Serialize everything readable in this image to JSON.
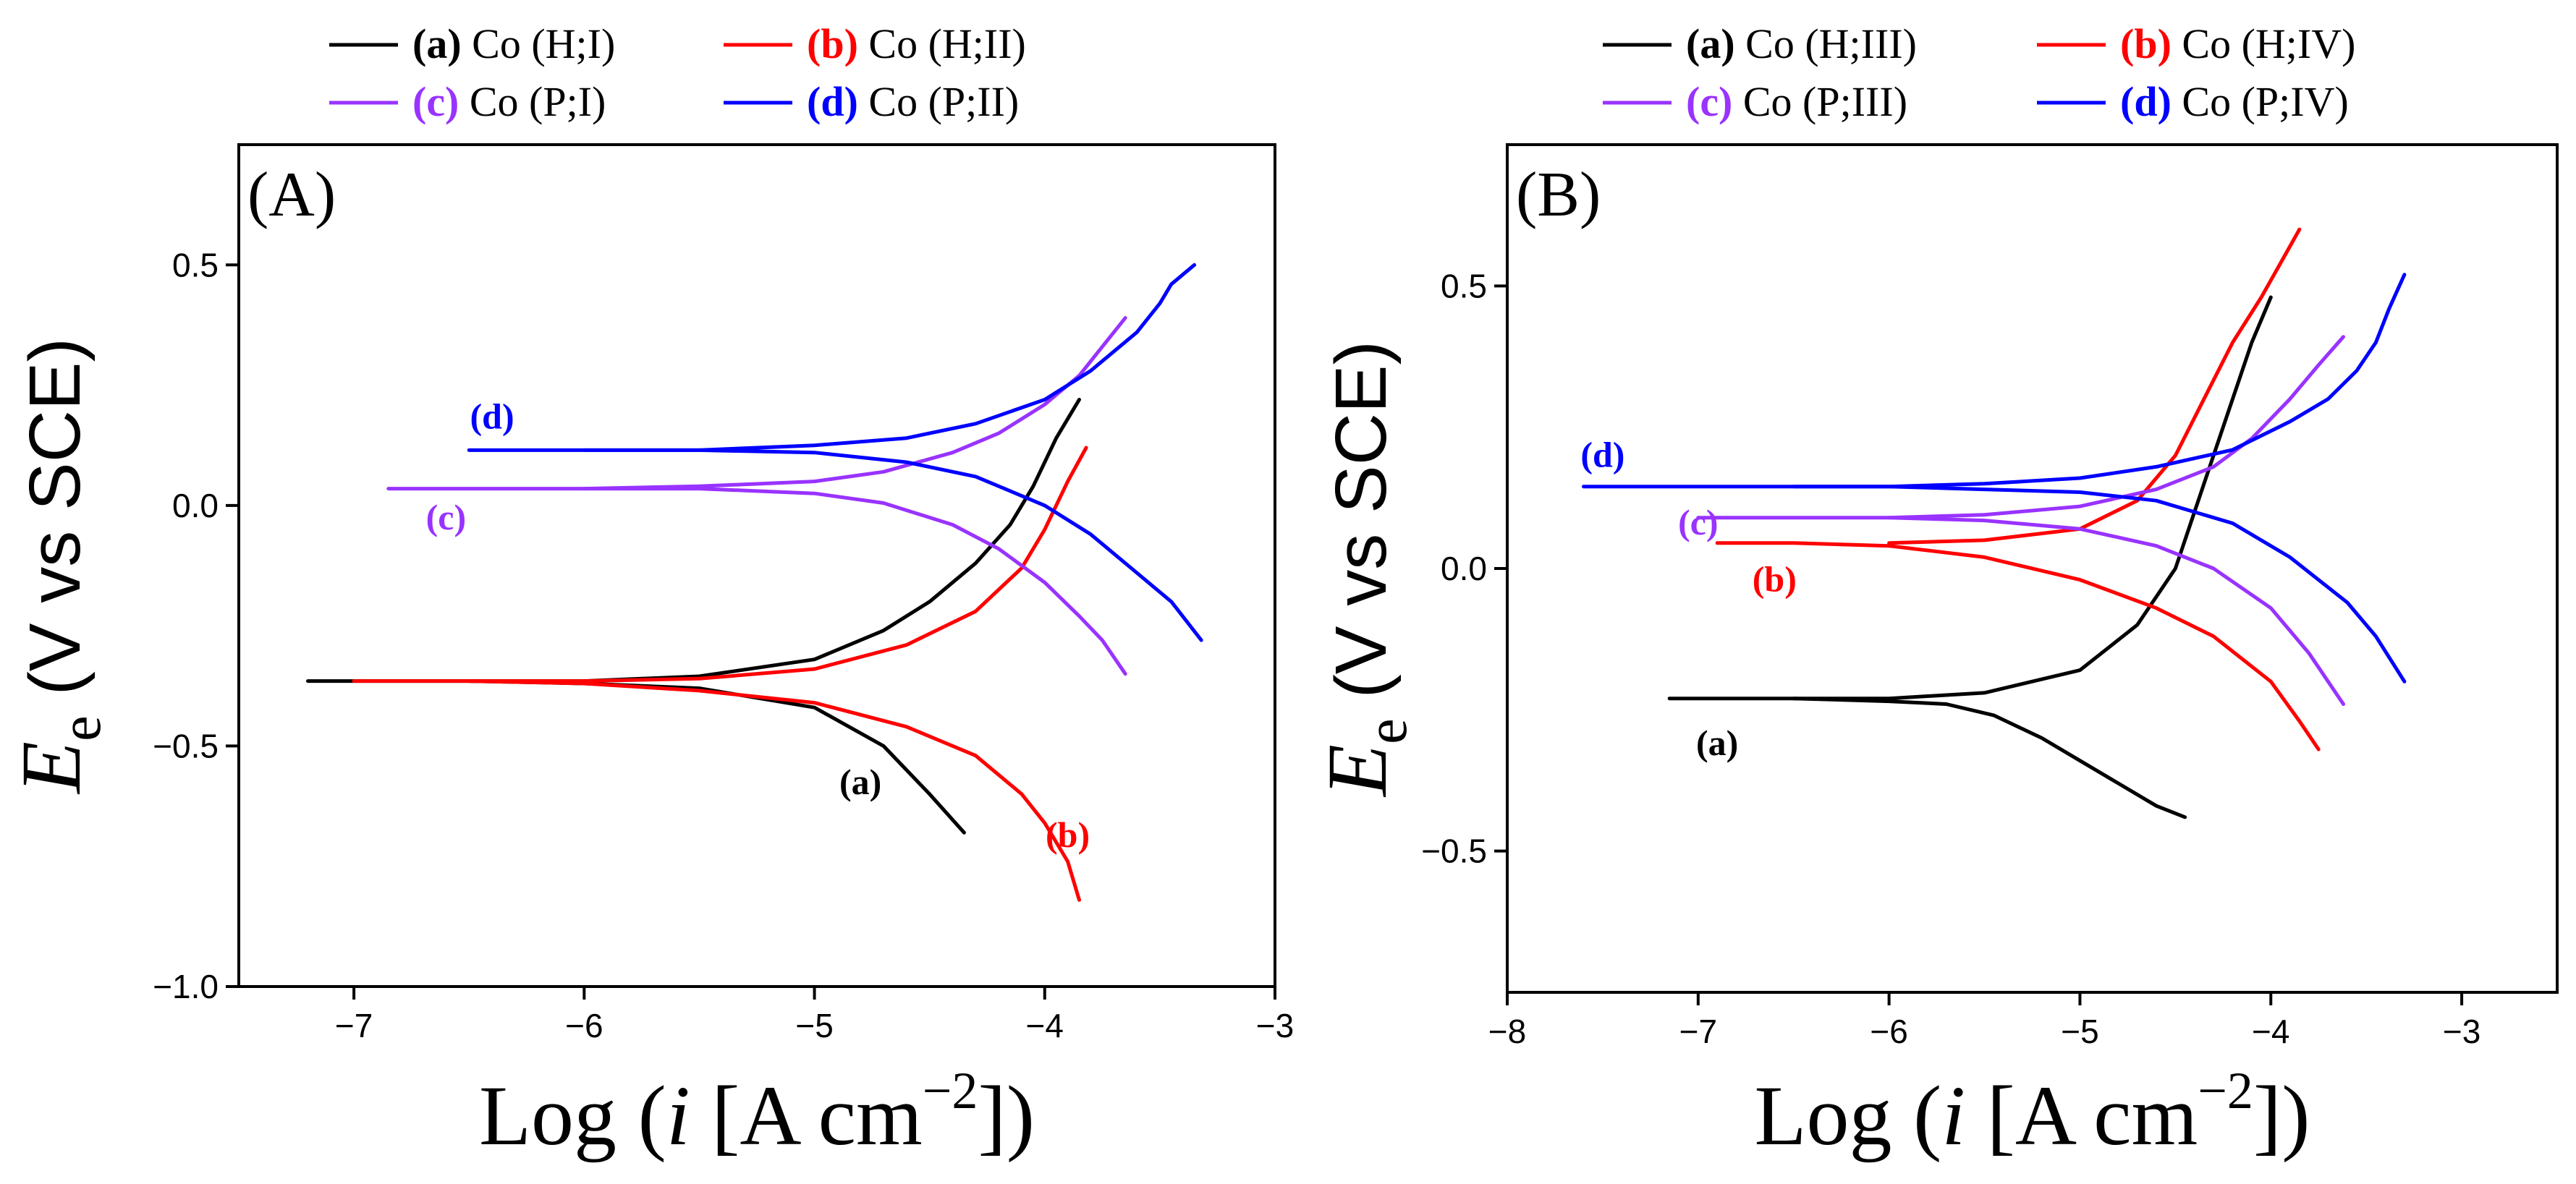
{
  "colors": {
    "a": "#000000",
    "b": "#ff0000",
    "c": "#9933ff",
    "d": "#0000ff"
  },
  "chart_data": [
    {
      "type": "line",
      "panel_label": "(A)",
      "xlabel_prefix": "Log (",
      "xlabel_var": "i",
      "xlabel_mid": " [A cm",
      "xlabel_sup": "−2",
      "xlabel_suffix": "])",
      "ylabel_var": "E",
      "ylabel_sub": "e",
      "ylabel_unit": " (V vs SCE)",
      "xlim": [
        -7.5,
        -3
      ],
      "ylim": [
        -1.0,
        0.75
      ],
      "xticks": [
        -7,
        -6,
        -5,
        -4,
        -3
      ],
      "yticks": [
        -1.0,
        -0.5,
        0.0,
        0.5
      ],
      "xtick_labels": [
        "−7",
        "−6",
        "−5",
        "−4",
        "−3"
      ],
      "ytick_labels": [
        "−1.0",
        "−0.5",
        "0.0",
        "0.5"
      ],
      "legend": {
        "placement": "top",
        "entries": [
          {
            "key": "a",
            "letter": "(a)",
            "text": " Co (H;I)"
          },
          {
            "key": "b",
            "letter": "(b)",
            "text": " Co (H;II)"
          },
          {
            "key": "c",
            "letter": "(c)",
            "text": " Co (P;I)"
          },
          {
            "key": "d",
            "letter": "(d)",
            "text": " Co (P;II)"
          }
        ]
      },
      "curve_labels": [
        {
          "key": "d",
          "text": "(d)",
          "x": -6.4,
          "y": 0.16
        },
        {
          "key": "c",
          "text": "(c)",
          "x": -6.6,
          "y": -0.05
        },
        {
          "key": "a",
          "text": "(a)",
          "x": -4.8,
          "y": -0.6
        },
        {
          "key": "b",
          "text": "(b)",
          "x": -3.9,
          "y": -0.71
        }
      ],
      "series": [
        {
          "key": "a",
          "branches": [
            {
              "x": [
                -7.2,
                -6.5,
                -6.0,
                -5.5,
                -5.0,
                -4.7,
                -4.5,
                -4.35
              ],
              "y": [
                -0.365,
                -0.365,
                -0.37,
                -0.38,
                -0.42,
                -0.5,
                -0.6,
                -0.68
              ]
            },
            {
              "x": [
                -6.5,
                -6.0,
                -5.5,
                -5.0,
                -4.7,
                -4.5,
                -4.3,
                -4.15,
                -4.05,
                -3.95,
                -3.85
              ],
              "y": [
                -0.365,
                -0.365,
                -0.355,
                -0.32,
                -0.26,
                -0.2,
                -0.12,
                -0.04,
                0.04,
                0.14,
                0.22
              ]
            }
          ]
        },
        {
          "key": "b",
          "branches": [
            {
              "x": [
                -7.0,
                -6.5,
                -6.0,
                -5.5,
                -5.0,
                -4.6,
                -4.3,
                -4.1,
                -4.0,
                -3.9,
                -3.85
              ],
              "y": [
                -0.365,
                -0.365,
                -0.37,
                -0.385,
                -0.41,
                -0.46,
                -0.52,
                -0.6,
                -0.66,
                -0.74,
                -0.82
              ]
            },
            {
              "x": [
                -6.5,
                -6.0,
                -5.5,
                -5.0,
                -4.6,
                -4.3,
                -4.1,
                -4.0,
                -3.9,
                -3.82
              ],
              "y": [
                -0.365,
                -0.365,
                -0.36,
                -0.34,
                -0.29,
                -0.22,
                -0.13,
                -0.05,
                0.05,
                0.12
              ]
            }
          ]
        },
        {
          "key": "c",
          "branches": [
            {
              "x": [
                -6.85,
                -6.0,
                -5.5,
                -5.0,
                -4.7,
                -4.4,
                -4.2,
                -4.0,
                -3.85,
                -3.75,
                -3.65
              ],
              "y": [
                0.035,
                0.035,
                0.035,
                0.025,
                0.005,
                -0.04,
                -0.09,
                -0.16,
                -0.23,
                -0.28,
                -0.35
              ]
            },
            {
              "x": [
                -6.0,
                -5.5,
                -5.0,
                -4.7,
                -4.4,
                -4.2,
                -4.0,
                -3.85,
                -3.75,
                -3.65
              ],
              "y": [
                0.035,
                0.04,
                0.05,
                0.07,
                0.11,
                0.15,
                0.21,
                0.27,
                0.33,
                0.39
              ]
            }
          ]
        },
        {
          "key": "d",
          "branches": [
            {
              "x": [
                -6.5,
                -6.0,
                -5.5,
                -5.0,
                -4.6,
                -4.3,
                -4.0,
                -3.8,
                -3.6,
                -3.45,
                -3.32
              ],
              "y": [
                0.115,
                0.115,
                0.115,
                0.11,
                0.09,
                0.06,
                0.0,
                -0.06,
                -0.14,
                -0.2,
                -0.28
              ]
            },
            {
              "x": [
                -6.0,
                -5.5,
                -5.0,
                -4.6,
                -4.3,
                -4.0,
                -3.8,
                -3.6,
                -3.5,
                -3.45,
                -3.4,
                -3.35
              ],
              "y": [
                0.115,
                0.115,
                0.125,
                0.14,
                0.17,
                0.22,
                0.28,
                0.36,
                0.42,
                0.46,
                0.48,
                0.5
              ]
            }
          ]
        }
      ]
    },
    {
      "type": "line",
      "panel_label": "(B)",
      "xlabel_prefix": "Log (",
      "xlabel_var": "i",
      "xlabel_mid": " [A cm",
      "xlabel_sup": "−2",
      "xlabel_suffix": "])",
      "ylabel_var": "E",
      "ylabel_sub": "e",
      "ylabel_unit": " (V vs SCE)",
      "xlim": [
        -8,
        -2.5
      ],
      "ylim": [
        -0.75,
        0.75
      ],
      "xticks": [
        -8,
        -7,
        -6,
        -5,
        -4,
        -3
      ],
      "yticks": [
        -0.5,
        0.0,
        0.5
      ],
      "xtick_labels": [
        "−8",
        "−7",
        "−6",
        "−5",
        "−4",
        "−3"
      ],
      "ytick_labels": [
        "−0.5",
        "0.0",
        "0.5"
      ],
      "legend": {
        "placement": "top",
        "entries": [
          {
            "key": "a",
            "letter": "(a)",
            "text": " Co (H;III)"
          },
          {
            "key": "b",
            "letter": "(b)",
            "text": " Co (H;IV)"
          },
          {
            "key": "c",
            "letter": "(c)",
            "text": " Co (P;III)"
          },
          {
            "key": "d",
            "letter": "(d)",
            "text": " Co (P;IV)"
          }
        ]
      },
      "curve_labels": [
        {
          "key": "d",
          "text": "(d)",
          "x": -7.5,
          "y": 0.18
        },
        {
          "key": "c",
          "text": "(c)",
          "x": -7.0,
          "y": 0.06
        },
        {
          "key": "b",
          "text": "(b)",
          "x": -6.6,
          "y": -0.04
        },
        {
          "key": "a",
          "text": "(a)",
          "x": -6.9,
          "y": -0.33
        }
      ],
      "series": [
        {
          "key": "a",
          "branches": [
            {
              "x": [
                -7.15,
                -6.5,
                -6.0,
                -5.7,
                -5.45,
                -5.2,
                -5.0,
                -4.8,
                -4.6,
                -4.45
              ],
              "y": [
                -0.23,
                -0.23,
                -0.235,
                -0.24,
                -0.26,
                -0.3,
                -0.34,
                -0.38,
                -0.42,
                -0.44
              ]
            },
            {
              "x": [
                -6.5,
                -6.0,
                -5.5,
                -5.0,
                -4.7,
                -4.5,
                -4.4,
                -4.3,
                -4.2,
                -4.1,
                -4.0
              ],
              "y": [
                -0.23,
                -0.23,
                -0.22,
                -0.18,
                -0.1,
                0.0,
                0.1,
                0.2,
                0.3,
                0.4,
                0.48
              ]
            }
          ]
        },
        {
          "key": "b",
          "branches": [
            {
              "x": [
                -6.9,
                -6.5,
                -6.0,
                -5.5,
                -5.0,
                -4.6,
                -4.3,
                -4.0,
                -3.85,
                -3.75
              ],
              "y": [
                0.045,
                0.045,
                0.04,
                0.02,
                -0.02,
                -0.07,
                -0.12,
                -0.2,
                -0.27,
                -0.32
              ]
            },
            {
              "x": [
                -6.0,
                -5.5,
                -5.0,
                -4.7,
                -4.5,
                -4.35,
                -4.2,
                -4.05,
                -3.95,
                -3.85
              ],
              "y": [
                0.045,
                0.05,
                0.07,
                0.12,
                0.2,
                0.3,
                0.4,
                0.48,
                0.54,
                0.6
              ]
            }
          ]
        },
        {
          "key": "c",
          "branches": [
            {
              "x": [
                -7.0,
                -6.5,
                -6.0,
                -5.5,
                -5.0,
                -4.6,
                -4.3,
                -4.0,
                -3.8,
                -3.62
              ],
              "y": [
                0.09,
                0.09,
                0.09,
                0.085,
                0.07,
                0.04,
                0.0,
                -0.07,
                -0.15,
                -0.24
              ]
            },
            {
              "x": [
                -6.0,
                -5.5,
                -5.0,
                -4.6,
                -4.3,
                -4.1,
                -3.9,
                -3.75,
                -3.62
              ],
              "y": [
                0.09,
                0.095,
                0.11,
                0.14,
                0.18,
                0.23,
                0.3,
                0.36,
                0.41
              ]
            }
          ]
        },
        {
          "key": "d",
          "branches": [
            {
              "x": [
                -7.6,
                -7.0,
                -6.5,
                -6.0,
                -5.5,
                -5.0,
                -4.6,
                -4.2,
                -3.9,
                -3.6,
                -3.45,
                -3.3
              ],
              "y": [
                0.145,
                0.145,
                0.145,
                0.145,
                0.14,
                0.135,
                0.12,
                0.08,
                0.02,
                -0.06,
                -0.12,
                -0.2
              ]
            },
            {
              "x": [
                -6.5,
                -6.0,
                -5.5,
                -5.0,
                -4.6,
                -4.2,
                -3.9,
                -3.7,
                -3.55,
                -3.45,
                -3.38,
                -3.3
              ],
              "y": [
                0.145,
                0.145,
                0.15,
                0.16,
                0.18,
                0.21,
                0.26,
                0.3,
                0.35,
                0.4,
                0.46,
                0.52
              ]
            }
          ]
        }
      ]
    }
  ]
}
